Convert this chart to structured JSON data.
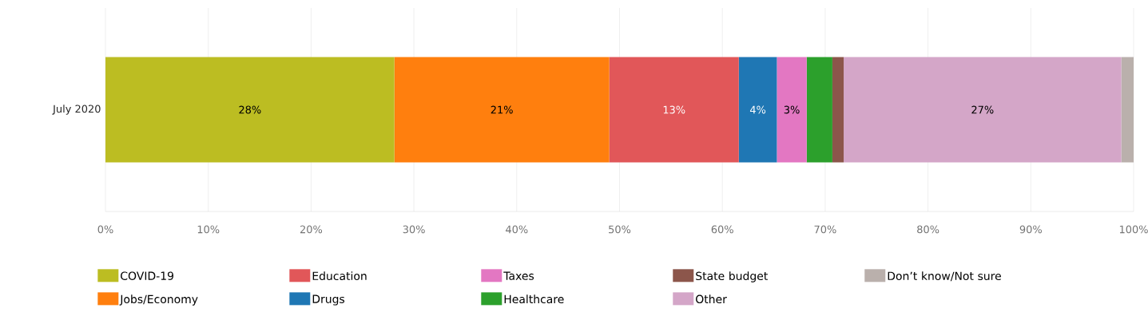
{
  "chart_data": {
    "type": "bar",
    "orientation": "horizontal",
    "stacked": true,
    "categories": [
      "July 2020"
    ],
    "series": [
      {
        "name": "COVID-19",
        "color": "#bcbd22",
        "values": [
          28.1
        ],
        "value_labels": [
          "28%"
        ]
      },
      {
        "name": "Jobs/Economy",
        "color": "#ff7f0e",
        "values": [
          20.9
        ],
        "value_labels": [
          "21%"
        ]
      },
      {
        "name": "Education",
        "color": "#e15759",
        "values": [
          12.6
        ],
        "value_labels": [
          "13%"
        ]
      },
      {
        "name": "Drugs",
        "color": "#1f77b4",
        "values": [
          3.7
        ],
        "value_labels": [
          "4%"
        ]
      },
      {
        "name": "Taxes",
        "color": "#e377c2",
        "values": [
          2.9
        ],
        "value_labels": [
          "3%"
        ]
      },
      {
        "name": "Healthcare",
        "color": "#2ca02c",
        "values": [
          2.5
        ],
        "value_labels": [
          null
        ]
      },
      {
        "name": "State budget",
        "color": "#8c564b",
        "values": [
          1.1
        ],
        "value_labels": [
          null
        ]
      },
      {
        "name": "Other",
        "color": "#d4a6c8",
        "values": [
          27.0
        ],
        "value_labels": [
          "27%"
        ]
      },
      {
        "name": "Don’t know/Not sure",
        "color": "#bab0ac",
        "values": [
          1.2
        ],
        "value_labels": [
          null
        ]
      }
    ],
    "xlim": [
      0,
      100
    ],
    "xticks": [
      {
        "value": 0,
        "label": "0%"
      },
      {
        "value": 10,
        "label": "10%"
      },
      {
        "value": 20,
        "label": "20%"
      },
      {
        "value": 30,
        "label": "30%"
      },
      {
        "value": 40,
        "label": "40%"
      },
      {
        "value": 50,
        "label": "50%"
      },
      {
        "value": 60,
        "label": "60%"
      },
      {
        "value": 70,
        "label": "70%"
      },
      {
        "value": 80,
        "label": "80%"
      },
      {
        "value": 90,
        "label": "90%"
      },
      {
        "value": 100,
        "label": "100%"
      }
    ],
    "grid": "x",
    "legend": "bottom"
  }
}
